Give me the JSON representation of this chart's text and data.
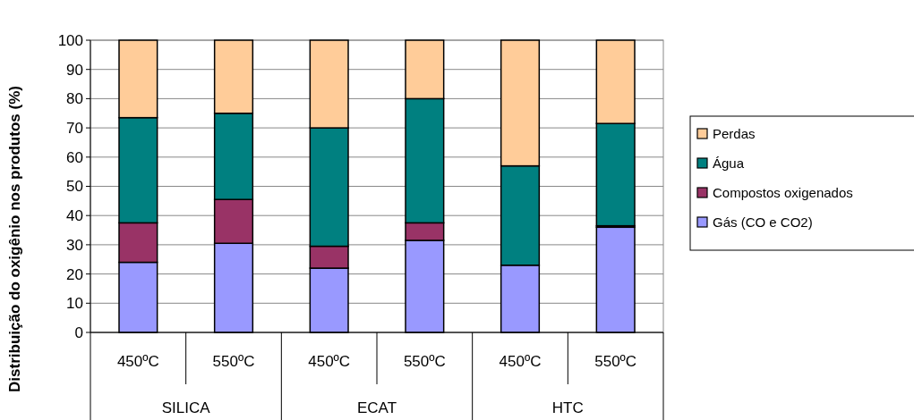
{
  "chart_data": {
    "type": "bar",
    "stacked": true,
    "ylabel": "Distribuição do oxigênio nos produtos (%)",
    "categories": [
      "450ºC",
      "550ºC",
      "450ºC",
      "550ºC",
      "450ºC",
      "550ºC"
    ],
    "annotations": [
      "SILICA",
      "ECAT",
      "HTC"
    ],
    "series": [
      {
        "name": "Gás (CO e CO2)",
        "color": "#9999ff",
        "values": [
          24,
          30.5,
          22,
          31.5,
          23,
          36
        ]
      },
      {
        "name": "Compostos oxigenados",
        "color": "#993366",
        "values": [
          13.5,
          15,
          7.5,
          6,
          0,
          0.5
        ]
      },
      {
        "name": "Água",
        "color": "#008080",
        "values": [
          36,
          29.5,
          40.5,
          42.5,
          34,
          35
        ]
      },
      {
        "name": "Perdas",
        "color": "#ffcc99",
        "values": [
          26.5,
          25,
          30,
          20,
          43,
          28.5
        ]
      }
    ],
    "ylim": [
      0,
      100
    ],
    "yticks": [
      0,
      10,
      20,
      30,
      40,
      50,
      60,
      70,
      80,
      90,
      100
    ],
    "grid": "y",
    "legend": "right"
  }
}
